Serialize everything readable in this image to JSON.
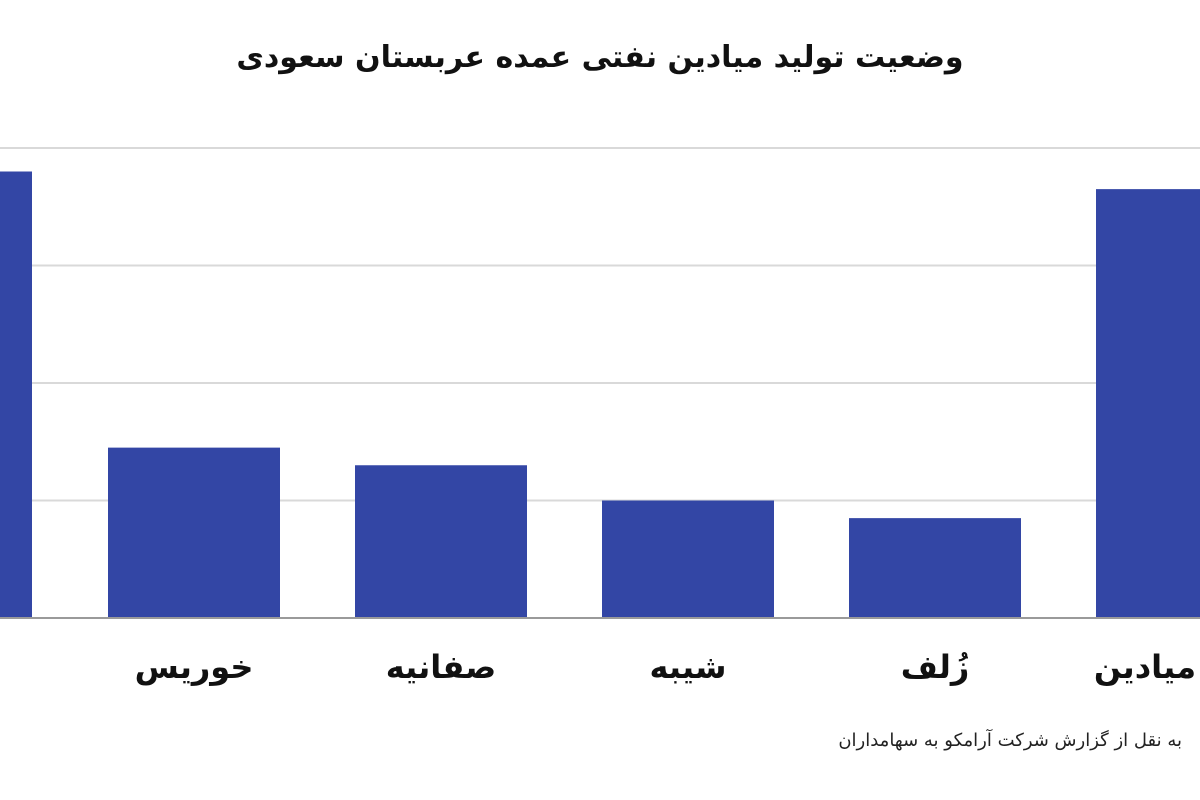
{
  "chart_data": {
    "type": "bar",
    "title": "وضعیت تولید میادین نفتی عمده عربستان سعودی",
    "categories": [
      "",
      "خوریس",
      "صفانیه",
      "شیبه",
      "زُلف",
      "میادین"
    ],
    "values": [
      3.8,
      1.45,
      1.3,
      1.0,
      0.85,
      3.65
    ],
    "ylim": [
      0,
      4
    ],
    "grid": true,
    "legend": "none",
    "xlabel": "",
    "ylabel": "",
    "bar_color": "#3346A5"
  },
  "source_note": "به نقل از گزارش شرکت آرامکو به سهامداران"
}
